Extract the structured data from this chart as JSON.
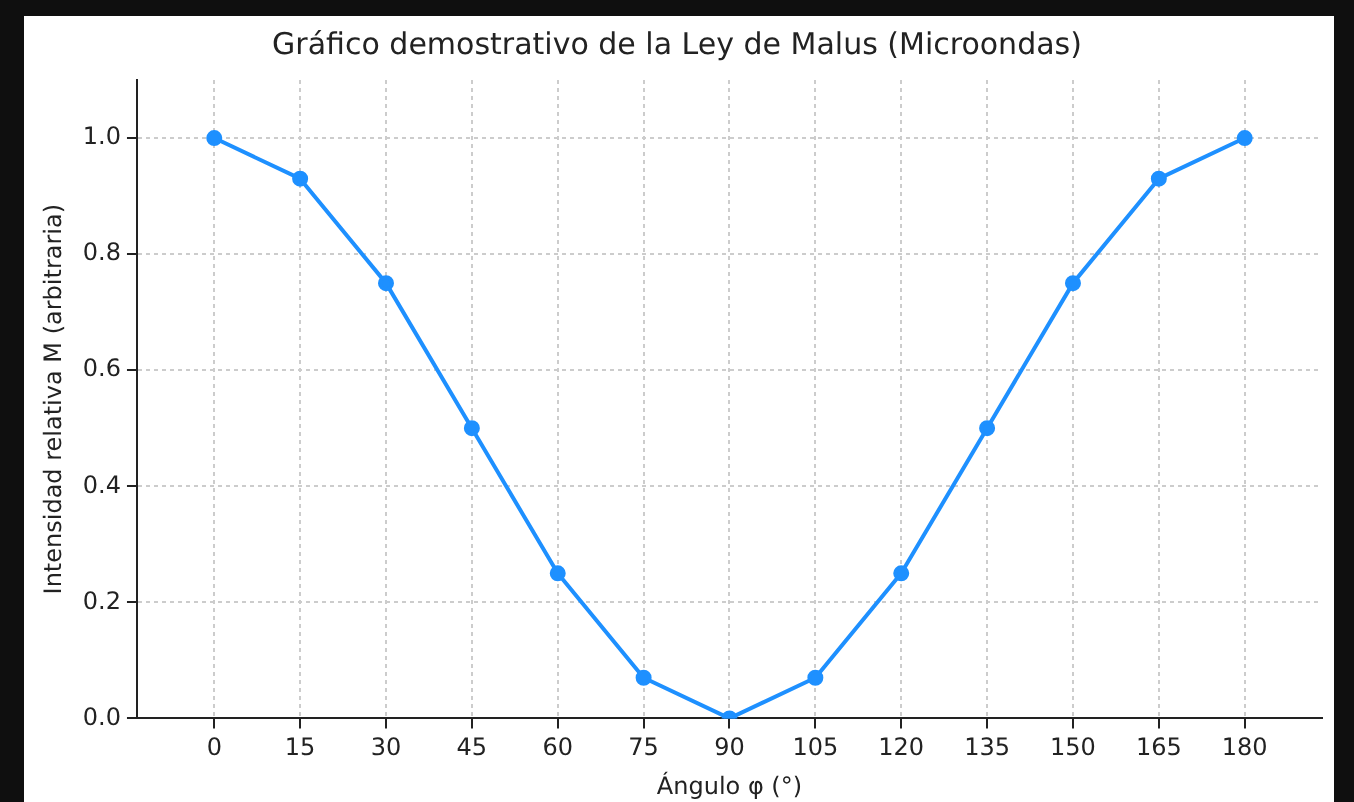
{
  "chart_data": {
    "type": "line",
    "title": "Gráfico demostrativo de la Ley de Malus (Microondas)",
    "xlabel": "Ángulo φ (°)",
    "ylabel": "Intensidad relativa M (arbitraria)",
    "x": [
      0,
      15,
      30,
      45,
      60,
      75,
      90,
      105,
      120,
      135,
      150,
      165,
      180
    ],
    "series": [
      {
        "color": "#1e90ff",
        "values": [
          1.0,
          0.93,
          0.75,
          0.5,
          0.25,
          0.07,
          0,
          0.07,
          0.25,
          0.5,
          0.75,
          0.93,
          1.0
        ]
      }
    ],
    "xlim": [
      -13.5,
      193.5
    ],
    "xticks": [
      0,
      15,
      30,
      45,
      60,
      75,
      90,
      105,
      120,
      135,
      150,
      165,
      180
    ],
    "ylim": [
      0,
      1.1
    ],
    "yticks": [
      {
        "value": 0,
        "label": "0.0"
      },
      {
        "value": 0.2,
        "label": "0.2"
      },
      {
        "value": 0.4,
        "label": "0.4"
      },
      {
        "value": 0.6,
        "label": "0.6"
      },
      {
        "value": 0.8,
        "label": "0.8"
      },
      {
        "value": 1.0,
        "label": "1.0"
      }
    ],
    "grid": true,
    "marker": "circle",
    "line_style": "solid",
    "legend": false
  }
}
